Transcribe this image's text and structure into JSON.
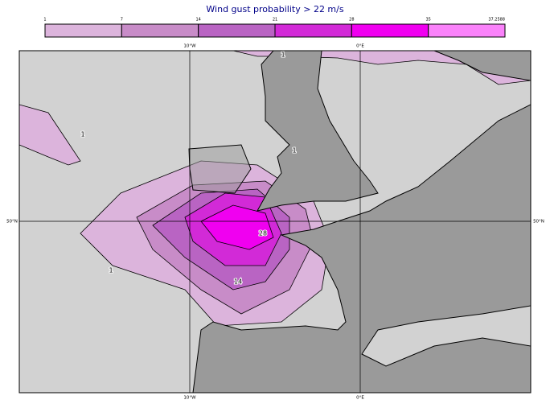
{
  "title": "Wind gust probability > 22 m/s",
  "colorbar": {
    "ticks": [
      "1",
      "7",
      "14",
      "21",
      "28",
      "35",
      "37.2588"
    ],
    "colors": [
      "#dcb4dc",
      "#c88cc8",
      "#b964c3",
      "#d22ad7",
      "#f000f0",
      "#fa82fa"
    ]
  },
  "axes": {
    "top": [
      "10°W",
      "0°E"
    ],
    "bottom": [
      "10°W",
      "0°E"
    ],
    "left": [
      "50°N"
    ],
    "right": [
      "50°N"
    ]
  },
  "contour_labels": [
    "1",
    "1",
    "1",
    "1",
    "28",
    "14"
  ]
}
